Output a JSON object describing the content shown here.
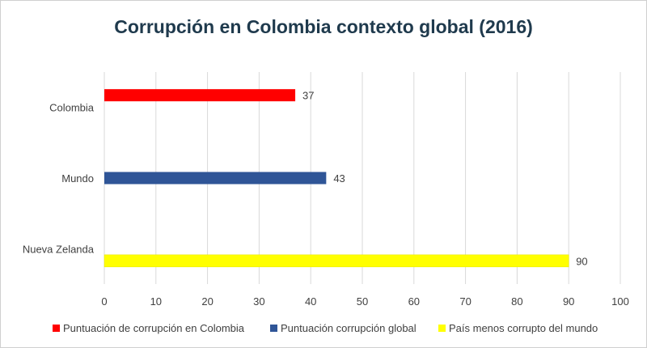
{
  "chart_data": {
    "type": "bar",
    "orientation": "horizontal",
    "title": "Corrupción en Colombia contexto global (2016)",
    "xlabel": "",
    "ylabel": "",
    "xlim": [
      0,
      100
    ],
    "xticks": [
      0,
      10,
      20,
      30,
      40,
      50,
      60,
      70,
      80,
      90,
      100
    ],
    "grid": true,
    "legend_position": "bottom",
    "categories": [
      "Colombia",
      "Mundo",
      "Nueva Zelanda"
    ],
    "series": [
      {
        "name": "Puntuación de corrupción en Colombia",
        "category": "Colombia",
        "value": 37,
        "color": "#ff0000"
      },
      {
        "name": "Puntuación corrupción global",
        "category": "Mundo",
        "value": 43,
        "color": "#2f5597"
      },
      {
        "name": "País menos corrupto del mundo",
        "category": "Nueva Zelanda",
        "value": 90,
        "color": "#ffff00"
      }
    ]
  }
}
